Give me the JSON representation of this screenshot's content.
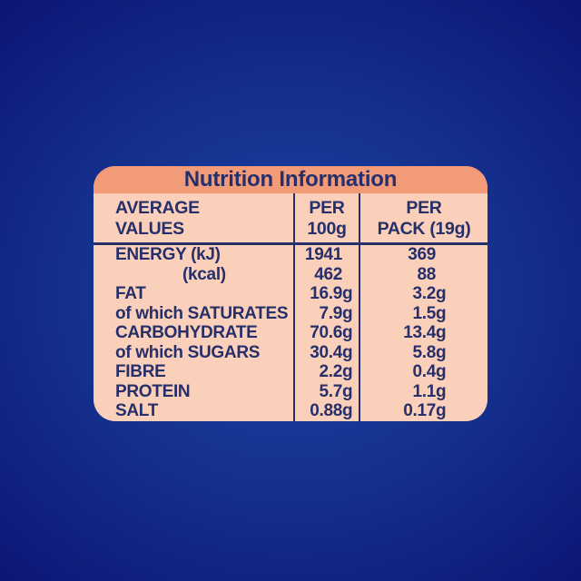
{
  "panel": {
    "title": "Nutrition Information",
    "columns": {
      "col1": [
        "AVERAGE",
        "VALUES"
      ],
      "col2": [
        "PER",
        "100g"
      ],
      "col3": [
        "PER",
        "PACK (19g)"
      ]
    },
    "rows": [
      {
        "label": "ENERGY (kJ)",
        "per100": "1941",
        "per100_unit": "",
        "pack": "369",
        "pack_unit": ""
      },
      {
        "label": "(kcal)",
        "per100": "462",
        "per100_unit": "",
        "pack": "88",
        "pack_unit": ""
      },
      {
        "label": "FAT",
        "per100": "16.9",
        "per100_unit": "g",
        "pack": "3.2",
        "pack_unit": "g"
      },
      {
        "label": "of which SATURATES",
        "per100": "7.9",
        "per100_unit": "g",
        "pack": "1.5",
        "pack_unit": "g"
      },
      {
        "label": "CARBOHYDRATE",
        "per100": "70.6",
        "per100_unit": "g",
        "pack": "13.4",
        "pack_unit": "g"
      },
      {
        "label": "of which SUGARS",
        "per100": "30.4",
        "per100_unit": "g",
        "pack": "5.8",
        "pack_unit": "g"
      },
      {
        "label": "FIBRE",
        "per100": "2.2",
        "per100_unit": "g",
        "pack": "0.4",
        "pack_unit": "g"
      },
      {
        "label": "PROTEIN",
        "per100": "5.7",
        "per100_unit": "g",
        "pack": "1.1",
        "pack_unit": "g"
      },
      {
        "label": "SALT",
        "per100": "0.88",
        "per100_unit": "g",
        "pack": "0.17",
        "pack_unit": "g"
      }
    ]
  },
  "colors": {
    "background_outer": "#0d1575",
    "background_inner": "#1e43a6",
    "band_salmon": "#f19b79",
    "panel_peach": "#fad0bb",
    "text_navy": "#262f6a"
  }
}
